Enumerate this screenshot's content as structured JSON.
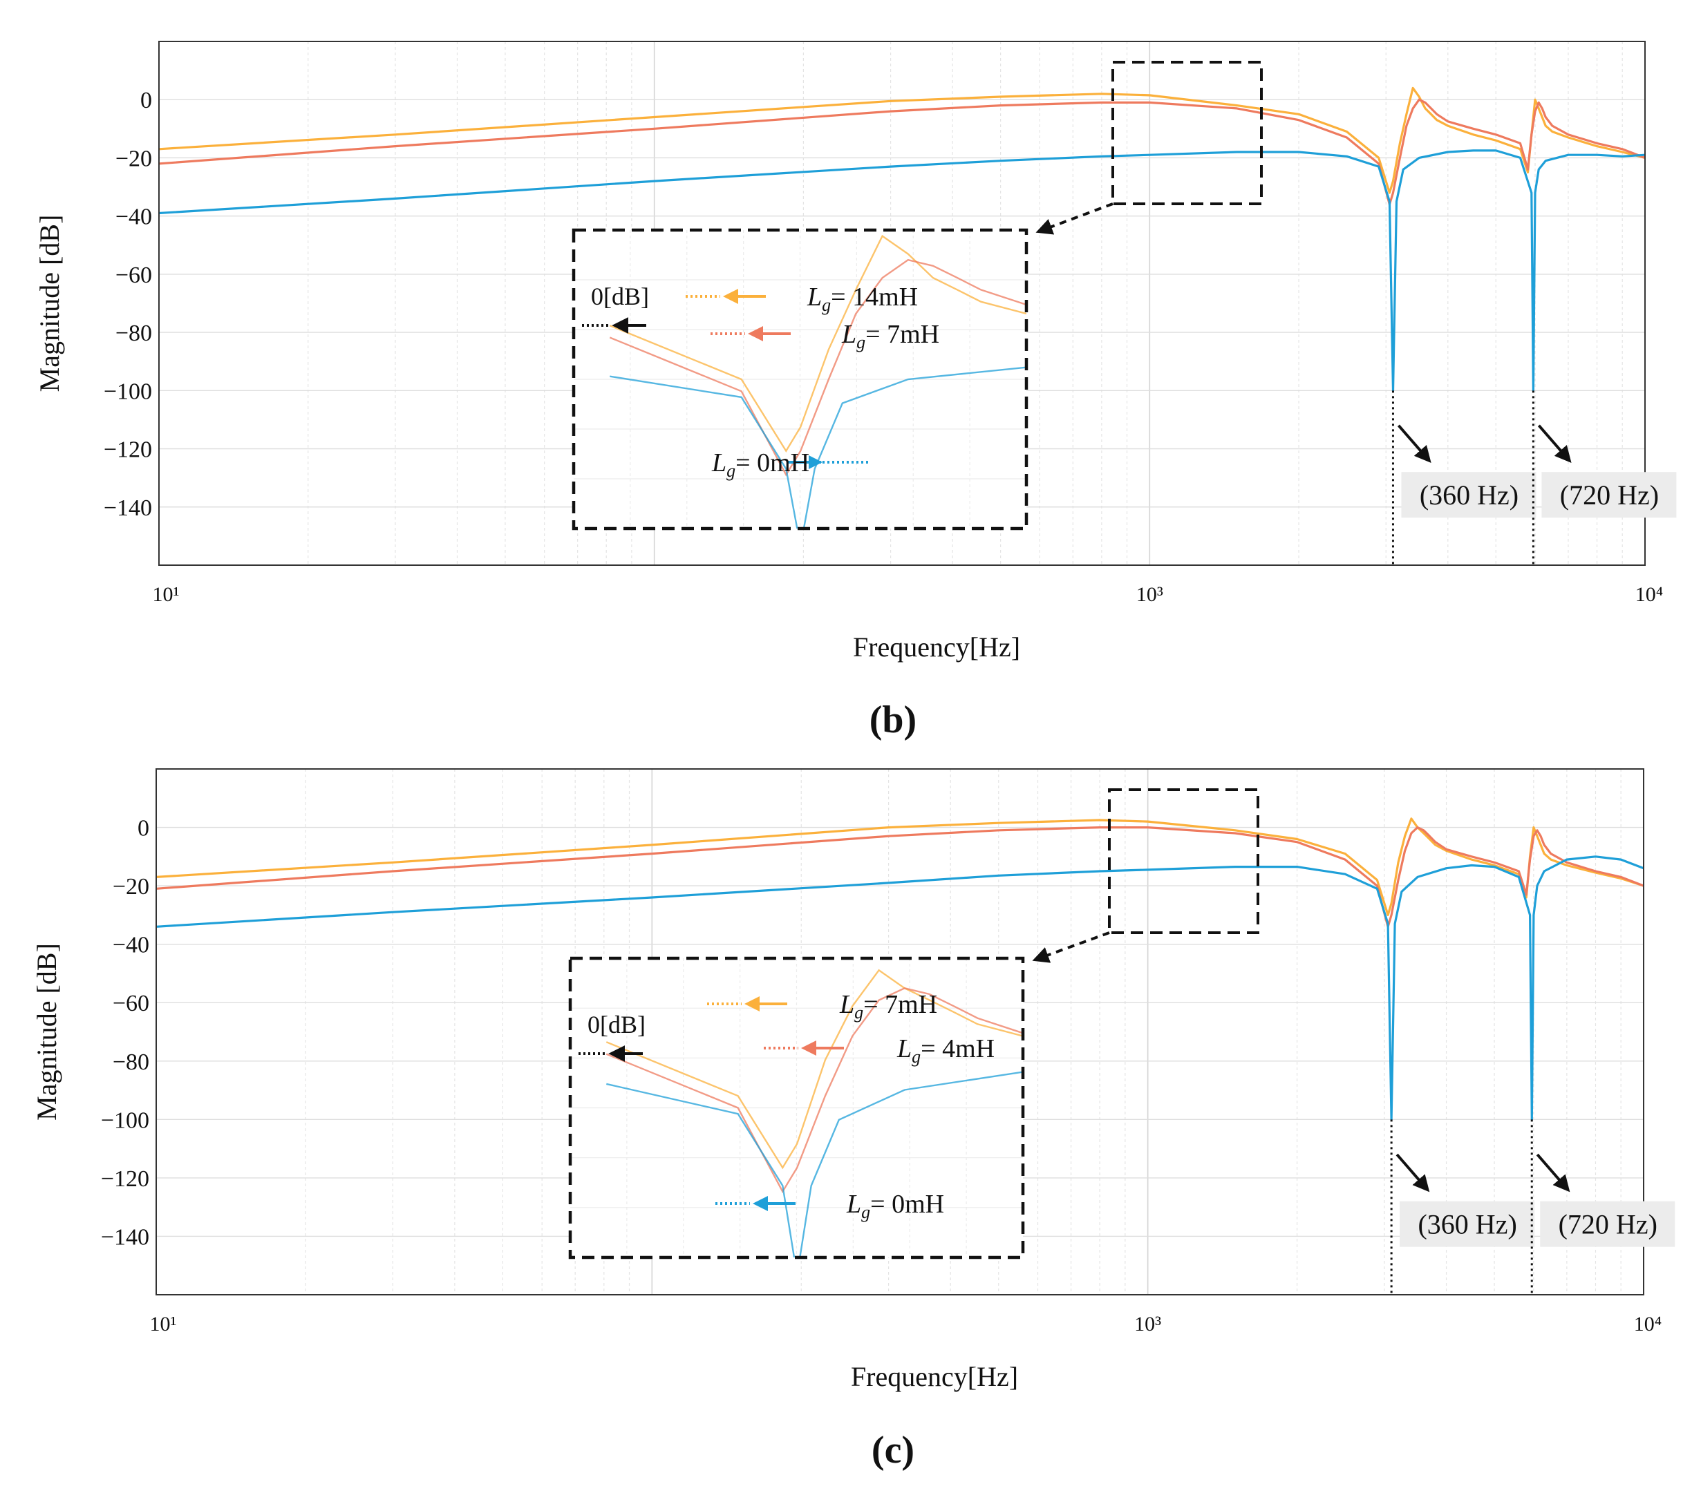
{
  "chart_data": [
    {
      "panel_label": "(b)",
      "type": "line",
      "title": "",
      "xlabel": "Frequency[Hz]",
      "ylabel": "Magnitude [dB]",
      "x_scale": "log",
      "xlim": [
        10,
        10000
      ],
      "ylim": [
        -160,
        20
      ],
      "x_tick_labels": [
        "10¹",
        "10³",
        "10⁴"
      ],
      "y_ticks": [
        0,
        -20,
        -40,
        -60,
        -80,
        -100,
        -120,
        -140
      ],
      "grid": true,
      "colors": {
        "Lg14": "#fbb03b",
        "Lg7": "#ee7a5e",
        "Lg0": "#1e9fd8"
      },
      "series": [
        {
          "key": "Lg14",
          "x": [
            10,
            30,
            100,
            300,
            500,
            800,
            1000,
            1500,
            2000,
            2500,
            2900,
            3050,
            3100,
            3200,
            3300,
            3400,
            3500,
            3600,
            3700,
            3800,
            4000,
            4500,
            5000,
            5600,
            5800,
            5900,
            6000,
            6100,
            6200,
            6300,
            6500,
            7000,
            8000,
            9000,
            10000
          ],
          "y": [
            -17,
            -12,
            -6,
            -0.5,
            1,
            2,
            1.5,
            -2,
            -5,
            -11,
            -20,
            -32,
            -28,
            -15,
            -5,
            4,
            1,
            -3,
            -5,
            -7,
            -9,
            -12,
            -14,
            -17,
            -25,
            -12,
            0,
            -3,
            -6,
            -9,
            -11,
            -13,
            -16,
            -18,
            -20
          ]
        },
        {
          "key": "Lg7",
          "x": [
            10,
            30,
            100,
            300,
            500,
            800,
            1000,
            1500,
            2000,
            2500,
            2900,
            3050,
            3100,
            3200,
            3300,
            3400,
            3500,
            3600,
            3700,
            3800,
            4000,
            4500,
            5000,
            5600,
            5800,
            5900,
            6000,
            6100,
            6200,
            6300,
            6500,
            7000,
            8000,
            9000,
            10000
          ],
          "y": [
            -22,
            -16,
            -10,
            -4,
            -2,
            -1,
            -1,
            -3,
            -7,
            -13,
            -22,
            -36,
            -32,
            -20,
            -9,
            -3,
            0,
            -1,
            -3,
            -5,
            -7.5,
            -10,
            -12,
            -15,
            -24,
            -12,
            -4,
            -1,
            -3,
            -6,
            -9,
            -12,
            -15,
            -17,
            -20
          ]
        },
        {
          "key": "Lg0",
          "x": [
            10,
            30,
            100,
            300,
            500,
            800,
            1000,
            1500,
            2000,
            2500,
            2900,
            3050,
            3100,
            3150,
            3250,
            3500,
            4000,
            4500,
            5000,
            5600,
            5900,
            5950,
            6000,
            6100,
            6300,
            7000,
            8000,
            9000,
            10000
          ],
          "y": [
            -39,
            -34,
            -28,
            -23,
            -21,
            -19.5,
            -19,
            -18,
            -18,
            -19.5,
            -23,
            -35,
            -100,
            -35,
            -24,
            -20,
            -18,
            -17.5,
            -17.5,
            -20,
            -32,
            -100,
            -32,
            -24,
            -21,
            -19,
            -19,
            -19.5,
            -19
          ]
        }
      ],
      "annotations": {
        "inset": {
          "zero_db": "0[dB]",
          "labels": [
            {
              "series": "Lg14",
              "text": "= 14mH"
            },
            {
              "series": "Lg7",
              "text": "= 7mH"
            },
            {
              "series": "Lg0",
              "text": "= 0mH"
            }
          ]
        },
        "resonances": [
          {
            "freq": 3100,
            "text": "(360 Hz)"
          },
          {
            "freq": 5950,
            "text": "(720 Hz)"
          }
        ]
      }
    },
    {
      "panel_label": "(c)",
      "type": "line",
      "title": "",
      "xlabel": "Frequency[Hz]",
      "ylabel": "Magnitude [dB]",
      "x_scale": "log",
      "xlim": [
        10,
        10000
      ],
      "ylim": [
        -160,
        20
      ],
      "x_tick_labels": [
        "10¹",
        "10³",
        "10⁴"
      ],
      "y_ticks": [
        0,
        -20,
        -40,
        -60,
        -80,
        -100,
        -120,
        -140
      ],
      "grid": true,
      "colors": {
        "Lg7": "#fbb03b",
        "Lg4": "#ee7a5e",
        "Lg0": "#1e9fd8"
      },
      "series": [
        {
          "key": "Lg7",
          "x": [
            10,
            30,
            100,
            300,
            500,
            800,
            1000,
            1500,
            2000,
            2500,
            2900,
            3050,
            3100,
            3200,
            3300,
            3400,
            3500,
            3600,
            3700,
            3800,
            4000,
            4500,
            5000,
            5600,
            5800,
            5900,
            6000,
            6100,
            6200,
            6300,
            6500,
            7000,
            8000,
            9000,
            10000
          ],
          "y": [
            -17,
            -12,
            -6,
            0,
            1.5,
            2.5,
            2,
            -1,
            -4,
            -9,
            -18,
            -30,
            -26,
            -12,
            -3,
            3,
            0,
            -2,
            -4,
            -6,
            -8,
            -11,
            -13,
            -16,
            -24,
            -10,
            0,
            -3,
            -6,
            -9,
            -11,
            -13,
            -15.5,
            -17.5,
            -20
          ]
        },
        {
          "key": "Lg4",
          "x": [
            10,
            30,
            100,
            300,
            500,
            800,
            1000,
            1500,
            2000,
            2500,
            2900,
            3050,
            3100,
            3200,
            3300,
            3400,
            3500,
            3600,
            3700,
            3800,
            4000,
            4500,
            5000,
            5600,
            5800,
            5900,
            6000,
            6100,
            6200,
            6300,
            6500,
            7000,
            8000,
            9000,
            10000
          ],
          "y": [
            -21,
            -15,
            -9,
            -3,
            -1,
            0,
            0,
            -2,
            -5,
            -11,
            -20,
            -34,
            -30,
            -18,
            -8,
            -2,
            0,
            -1,
            -3,
            -5,
            -7.5,
            -10,
            -12,
            -15,
            -23,
            -11,
            -3,
            -1,
            -3,
            -6,
            -9,
            -12,
            -15,
            -17,
            -20
          ]
        },
        {
          "key": "Lg0",
          "x": [
            10,
            30,
            100,
            300,
            500,
            800,
            1000,
            1500,
            2000,
            2500,
            2900,
            3050,
            3100,
            3150,
            3250,
            3500,
            4000,
            4500,
            5000,
            5600,
            5900,
            5950,
            6000,
            6100,
            6300,
            7000,
            8000,
            9000,
            10000
          ],
          "y": [
            -34,
            -29,
            -24,
            -19,
            -16.5,
            -15,
            -14.5,
            -13.5,
            -13.5,
            -16,
            -21,
            -33,
            -100,
            -33,
            -22,
            -17,
            -14,
            -13,
            -13.5,
            -17,
            -30,
            -100,
            -30,
            -20,
            -15,
            -11,
            -10,
            -11,
            -14
          ]
        }
      ],
      "annotations": {
        "inset": {
          "zero_db": "0[dB]",
          "labels": [
            {
              "series": "Lg7",
              "text": "= 7mH"
            },
            {
              "series": "Lg4",
              "text": "= 4mH"
            },
            {
              "series": "Lg0",
              "text": "= 0mH"
            }
          ]
        },
        "resonances": [
          {
            "freq": 3100,
            "text": "(360 Hz)"
          },
          {
            "freq": 5950,
            "text": "(720 Hz)"
          }
        ]
      }
    }
  ]
}
